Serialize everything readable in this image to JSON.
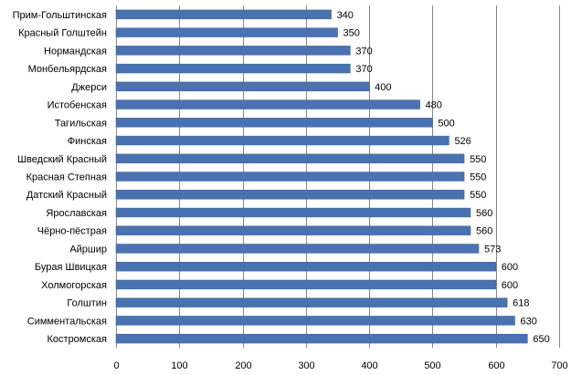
{
  "chart_data": {
    "type": "bar",
    "orientation": "horizontal",
    "categories": [
      "Прим-Гольштинская",
      "Красный Голштейн",
      "Нормандская",
      "Монбельярдская",
      "Джерси",
      "Истобенская",
      "Тагильская",
      "Финская",
      "Шведский Красный",
      "Красная Степная",
      "Датский Красный",
      "Ярославская",
      "Чёрно-пёстрая",
      "Айршир",
      "Бурая Швицкая",
      "Холмогорская",
      "Голштин",
      "Симментальская",
      "Костромская"
    ],
    "values": [
      340,
      350,
      370,
      370,
      400,
      480,
      500,
      526,
      550,
      550,
      550,
      560,
      560,
      573,
      600,
      600,
      618,
      630,
      650
    ],
    "xticks": [
      0,
      100,
      200,
      300,
      400,
      500,
      600,
      700
    ],
    "xlim": [
      0,
      700
    ],
    "grid": true,
    "legend": "none",
    "bar_color": "#4a72b0",
    "grid_color": "#868686"
  }
}
